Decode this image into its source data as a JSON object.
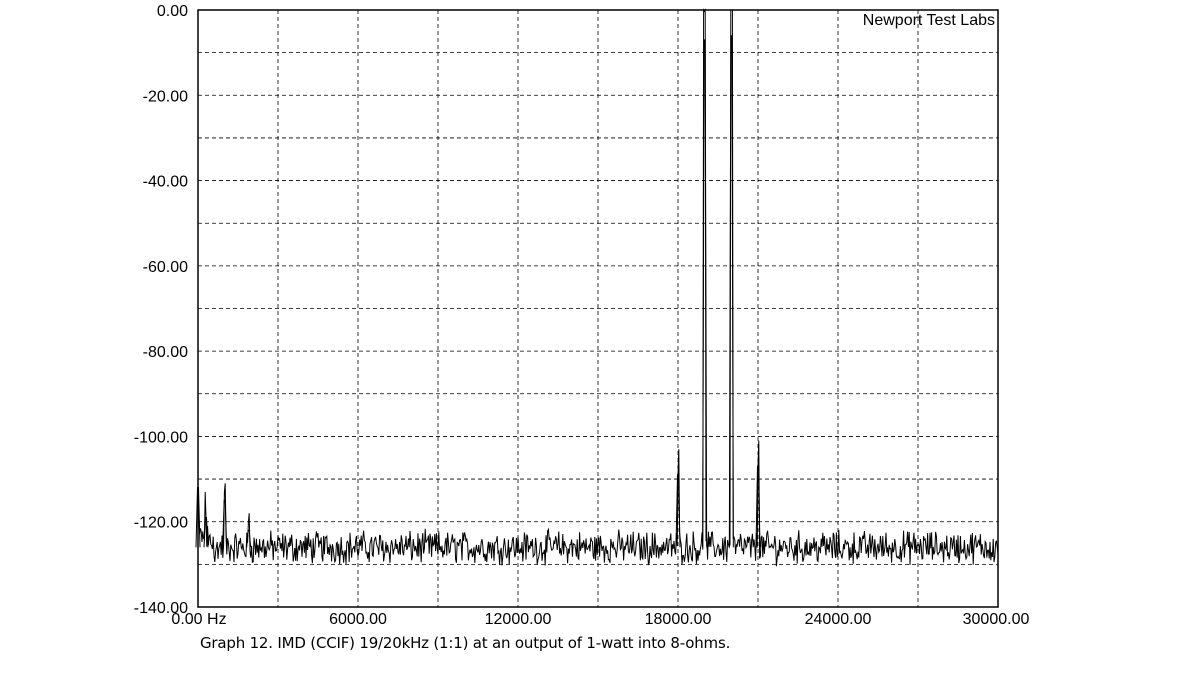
{
  "chart_data": {
    "type": "line",
    "title": "",
    "xlabel": "",
    "ylabel": "",
    "xlim": [
      0,
      30000
    ],
    "ylim": [
      -140,
      0
    ],
    "grid": true,
    "x_ticks": [
      0,
      6000,
      12000,
      18000,
      24000,
      30000
    ],
    "x_tick_labels": [
      "0.00 Hz",
      "6000.00",
      "12000.00",
      "18000.00",
      "24000.00",
      "30000.00"
    ],
    "y_ticks": [
      0,
      -20,
      -40,
      -60,
      -80,
      -100,
      -120,
      -140
    ],
    "y_tick_labels": [
      "0.00",
      "-20.00",
      "-40.00",
      "-60.00",
      "-80.00",
      "-100.00",
      "-120.00",
      "-140.00"
    ],
    "annotation": "Newport Test Labs",
    "noise_floor_db": -126,
    "peaks": [
      {
        "x": 0,
        "y": -112
      },
      {
        "x": 300,
        "y": -119
      },
      {
        "x": 1000,
        "y": -115
      },
      {
        "x": 1900,
        "y": -122
      },
      {
        "x": 18000,
        "y": -109
      },
      {
        "x": 19000,
        "y": -7
      },
      {
        "x": 20000,
        "y": -6
      },
      {
        "x": 21000,
        "y": -107
      }
    ]
  },
  "caption": "Graph 12. IMD (CCIF) 19/20kHz (1:1) at an output of 1-watt into 8-ohms."
}
